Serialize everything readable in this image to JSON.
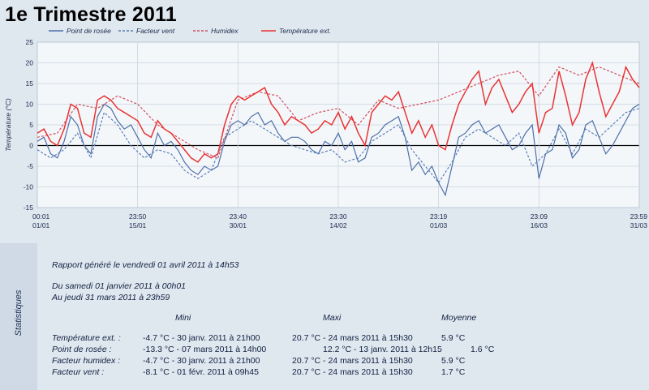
{
  "title": "1e Trimestre 2011",
  "chart_data": {
    "type": "line",
    "ylabel": "Température (°C)",
    "ylim": [
      -15,
      25
    ],
    "yticks": [
      25,
      20,
      15,
      10,
      5,
      0,
      -5,
      -10,
      -15
    ],
    "grid": true,
    "legend_position": "top",
    "x_ticks": [
      {
        "t1": "00:01",
        "t2": "01/01"
      },
      {
        "t1": "23:50",
        "t2": "15/01"
      },
      {
        "t1": "23:40",
        "t2": "30/01"
      },
      {
        "t1": "23:30",
        "t2": "14/02"
      },
      {
        "t1": "23:19",
        "t2": "01/03"
      },
      {
        "t1": "23:09",
        "t2": "16/03"
      },
      {
        "t1": "23:59",
        "t2": "31/03"
      }
    ],
    "x_range_days": [
      0,
      90
    ],
    "series": [
      {
        "name": "Point de rosée",
        "color": "#4d6fa8",
        "dash": "none",
        "x": [
          0,
          1,
          2,
          3,
          4,
          5,
          6,
          7,
          8,
          9,
          10,
          11,
          12,
          13,
          14,
          15,
          16,
          17,
          18,
          19,
          20,
          21,
          22,
          23,
          24,
          25,
          26,
          27,
          28,
          29,
          30,
          31,
          32,
          33,
          34,
          35,
          36,
          37,
          38,
          39,
          40,
          41,
          42,
          43,
          44,
          45,
          46,
          47,
          48,
          49,
          50,
          51,
          52,
          53,
          54,
          55,
          56,
          57,
          58,
          59,
          60,
          61,
          62,
          63,
          64,
          65,
          66,
          67,
          68,
          69,
          70,
          71,
          72,
          73,
          74,
          75,
          76,
          77,
          78,
          79,
          80,
          81,
          82,
          83,
          84,
          85,
          86,
          87,
          88,
          89,
          90
        ],
        "y": [
          1,
          2,
          -2,
          -3,
          1,
          7,
          5,
          0,
          -2,
          7,
          10,
          9,
          6,
          4,
          5,
          2,
          -1,
          -3,
          3,
          0,
          1,
          -1,
          -4,
          -6,
          -7,
          -5,
          -6,
          -5,
          1,
          5,
          6,
          5,
          7,
          8,
          5,
          6,
          3,
          1,
          2,
          2,
          1,
          -1,
          -2,
          1,
          0,
          3,
          -1,
          1,
          -4,
          -3,
          2,
          3,
          5,
          6,
          7,
          2,
          -6,
          -4,
          -7,
          -5,
          -9,
          -12,
          -5,
          2,
          3,
          5,
          6,
          3,
          4,
          5,
          2,
          -1,
          0,
          3,
          5,
          -8,
          -2,
          -1,
          5,
          3,
          -3,
          -1,
          5,
          6,
          2,
          -2,
          0,
          3,
          6,
          9,
          10
        ]
      },
      {
        "name": "Facteur vent",
        "color": "#5a7fb8",
        "dash": "3,2",
        "x": [
          0,
          2,
          4,
          6,
          8,
          10,
          12,
          14,
          16,
          18,
          20,
          22,
          24,
          26,
          28,
          30,
          32,
          34,
          36,
          38,
          40,
          42,
          44,
          46,
          48,
          50,
          52,
          54,
          56,
          58,
          60,
          62,
          64,
          66,
          68,
          70,
          72,
          74,
          76,
          78,
          80,
          82,
          84,
          86,
          88,
          90
        ],
        "y": [
          -1,
          -3,
          -1,
          3,
          -3,
          8,
          5,
          0,
          -3,
          -1,
          -2,
          -6,
          -8,
          -6,
          2,
          4,
          6,
          4,
          2,
          0,
          -1,
          -2,
          -1,
          -4,
          -3,
          1,
          3,
          5,
          -1,
          -5,
          -9,
          -4,
          2,
          4,
          2,
          0,
          3,
          -5,
          -2,
          4,
          -2,
          4,
          2,
          5,
          8,
          9
        ]
      },
      {
        "name": "Humidex",
        "color": "#d05060",
        "dash": "3,2",
        "x": [
          0,
          3,
          6,
          9,
          12,
          15,
          18,
          21,
          24,
          27,
          30,
          33,
          36,
          39,
          42,
          45,
          48,
          51,
          54,
          57,
          60,
          63,
          66,
          69,
          72,
          75,
          78,
          81,
          84,
          87,
          90
        ],
        "y": [
          2,
          3,
          10,
          9,
          12,
          10,
          5,
          2,
          -1,
          -3,
          11,
          13,
          12,
          6,
          8,
          9,
          5,
          11,
          9,
          10,
          11,
          13,
          15,
          17,
          18,
          12,
          19,
          17,
          19,
          17,
          15
        ]
      },
      {
        "name": "Température ext.",
        "color": "#e83434",
        "dash": "none",
        "x": [
          0,
          1,
          2,
          3,
          4,
          5,
          6,
          7,
          8,
          9,
          10,
          11,
          12,
          13,
          14,
          15,
          16,
          17,
          18,
          19,
          20,
          21,
          22,
          23,
          24,
          25,
          26,
          27,
          28,
          29,
          30,
          31,
          32,
          33,
          34,
          35,
          36,
          37,
          38,
          39,
          40,
          41,
          42,
          43,
          44,
          45,
          46,
          47,
          48,
          49,
          50,
          51,
          52,
          53,
          54,
          55,
          56,
          57,
          58,
          59,
          60,
          61,
          62,
          63,
          64,
          65,
          66,
          67,
          68,
          69,
          70,
          71,
          72,
          73,
          74,
          75,
          76,
          77,
          78,
          79,
          80,
          81,
          82,
          83,
          84,
          85,
          86,
          87,
          88,
          89,
          90
        ],
        "y": [
          3,
          4,
          1,
          0,
          4,
          10,
          9,
          3,
          2,
          11,
          12,
          11,
          9,
          8,
          7,
          6,
          3,
          2,
          6,
          4,
          3,
          1,
          -1,
          -3,
          -4,
          -2,
          -3,
          -2,
          5,
          10,
          12,
          11,
          12,
          13,
          14,
          10,
          8,
          5,
          7,
          6,
          5,
          3,
          4,
          6,
          5,
          8,
          4,
          7,
          3,
          0,
          8,
          10,
          12,
          11,
          13,
          8,
          3,
          6,
          2,
          5,
          0,
          -1,
          5,
          10,
          13,
          16,
          18,
          10,
          14,
          16,
          12,
          8,
          10,
          13,
          15,
          3,
          8,
          9,
          18,
          12,
          5,
          8,
          16,
          20,
          13,
          7,
          10,
          13,
          19,
          16,
          14
        ]
      }
    ]
  },
  "stats": {
    "side_label": "Statistiques",
    "report": "Rapport généré le vendredi 01 avril 2011 à 14h53",
    "from": "Du samedi 01 janvier 2011 à 00h01",
    "to": "Au jeudi 31 mars 2011 à 23h59",
    "col_mini": "Mini",
    "col_maxi": "Maxi",
    "col_moy": "Moyenne",
    "rows": [
      {
        "label": "Température ext. :",
        "mini": "-4.7 °C - 30 janv. 2011 à 21h00",
        "maxi": "20.7 °C - 24 mars 2011 à 15h30",
        "moy": "5.9 °C"
      },
      {
        "label": "Point de rosée :",
        "mini": "-13.3 °C - 07 mars 2011 à 14h00",
        "maxi": "12.2 °C - 13 janv. 2011 à 12h15",
        "moy": "1.6 °C"
      },
      {
        "label": "Facteur humidex :",
        "mini": "-4.7 °C - 30 janv. 2011 à 21h00",
        "maxi": "20.7 °C - 24 mars 2011 à 15h30",
        "moy": "5.9 °C"
      },
      {
        "label": "Facteur vent :",
        "mini": "-8.1 °C - 01 févr. 2011 à 09h45",
        "maxi": "20.7 °C - 24 mars 2011 à 15h30",
        "moy": "1.7 °C"
      }
    ]
  }
}
